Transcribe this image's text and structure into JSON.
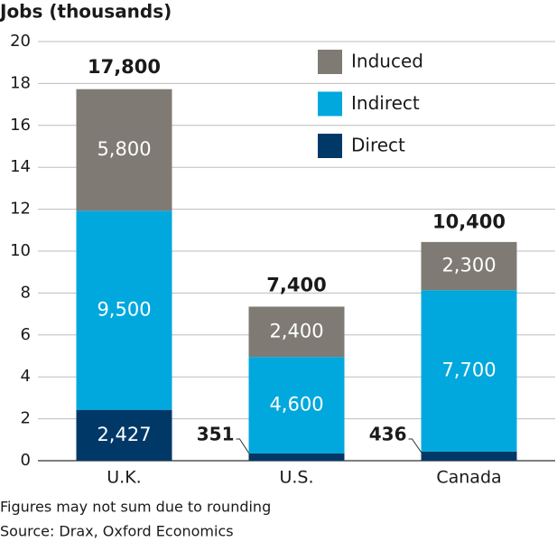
{
  "chart_data": {
    "type": "stacked-bar",
    "title": "Jobs (thousands)",
    "categories": [
      "U.K.",
      "U.S.",
      "Canada"
    ],
    "series": [
      {
        "name": "Direct",
        "color": "#003868",
        "values": [
          2.427,
          0.351,
          0.436
        ],
        "value_labels": [
          "2,427",
          "351",
          "436"
        ]
      },
      {
        "name": "Indirect",
        "color": "#00a8dd",
        "values": [
          9.5,
          4.6,
          7.7
        ],
        "value_labels": [
          "9,500",
          "4,600",
          "7,700"
        ]
      },
      {
        "name": "Induced",
        "color": "#7f7b74",
        "values": [
          5.8,
          2.4,
          2.3
        ],
        "value_labels": [
          "5,800",
          "2,400",
          "2,300"
        ]
      }
    ],
    "totals": {
      "values": [
        17.8,
        7.4,
        10.4
      ],
      "value_labels": [
        "17,800",
        "7,400",
        "10,400"
      ]
    },
    "ylim": [
      0,
      20
    ],
    "yticks": [
      0,
      2,
      4,
      6,
      8,
      10,
      12,
      14,
      16,
      18,
      20
    ],
    "grid": true,
    "legend": "top-right",
    "notes": [
      "Figures may not sum due to rounding",
      "Source: Drax, Oxford Economics"
    ]
  }
}
